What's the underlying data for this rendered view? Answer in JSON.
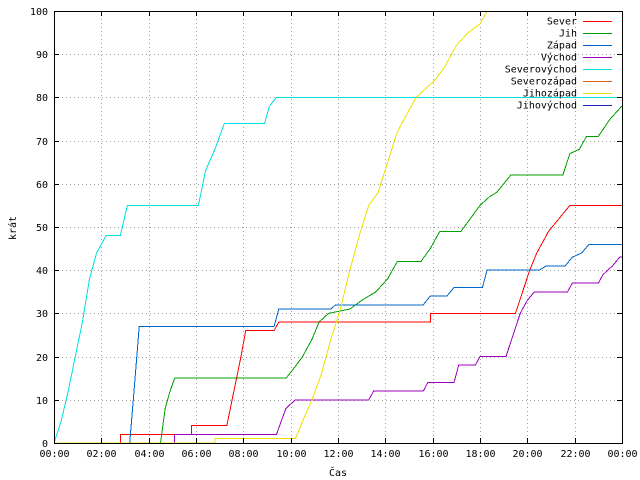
{
  "chart_data": {
    "type": "line",
    "xlabel": "Čas",
    "ylabel": "krát",
    "xlim": [
      0,
      24
    ],
    "ylim": [
      0,
      100
    ],
    "grid": true,
    "legend_position": "top-right",
    "x_ticks": [
      {
        "value": 0,
        "label": "00:00"
      },
      {
        "value": 2,
        "label": "02:00"
      },
      {
        "value": 4,
        "label": "04:00"
      },
      {
        "value": 6,
        "label": "06:00"
      },
      {
        "value": 8,
        "label": "08:00"
      },
      {
        "value": 10,
        "label": "10:00"
      },
      {
        "value": 12,
        "label": "12:00"
      },
      {
        "value": 14,
        "label": "14:00"
      },
      {
        "value": 16,
        "label": "16:00"
      },
      {
        "value": 18,
        "label": "18:00"
      },
      {
        "value": 20,
        "label": "20:00"
      },
      {
        "value": 22,
        "label": "22:00"
      },
      {
        "value": 24,
        "label": "00:00"
      }
    ],
    "y_ticks": [
      0,
      10,
      20,
      30,
      40,
      50,
      60,
      70,
      80,
      90,
      100
    ],
    "series": [
      {
        "name": "Sever",
        "color": "#ff0000",
        "points": [
          [
            0,
            0
          ],
          [
            2.8,
            0
          ],
          [
            2.8,
            2
          ],
          [
            5.8,
            2
          ],
          [
            5.8,
            4
          ],
          [
            7.3,
            4
          ],
          [
            7.6,
            12
          ],
          [
            7.9,
            20
          ],
          [
            8.1,
            26
          ],
          [
            9.3,
            26
          ],
          [
            9.5,
            28
          ],
          [
            15.9,
            28
          ],
          [
            15.9,
            30
          ],
          [
            19.5,
            30
          ],
          [
            19.8,
            35
          ],
          [
            20.1,
            40
          ],
          [
            20.4,
            44
          ],
          [
            20.7,
            47
          ],
          [
            20.9,
            49
          ],
          [
            21.2,
            51
          ],
          [
            21.5,
            53
          ],
          [
            21.8,
            55
          ],
          [
            24,
            55
          ]
        ]
      },
      {
        "name": "Jih",
        "color": "#00a000",
        "points": [
          [
            0,
            0
          ],
          [
            4.5,
            0
          ],
          [
            4.7,
            8
          ],
          [
            4.9,
            12
          ],
          [
            5.1,
            15
          ],
          [
            9.8,
            15
          ],
          [
            10.1,
            17
          ],
          [
            10.5,
            20
          ],
          [
            10.9,
            24
          ],
          [
            11.2,
            28
          ],
          [
            11.6,
            30
          ],
          [
            12.5,
            31
          ],
          [
            13,
            33
          ],
          [
            13.6,
            35
          ],
          [
            14.1,
            38
          ],
          [
            14.5,
            42
          ],
          [
            15.5,
            42
          ],
          [
            15.9,
            45
          ],
          [
            16.3,
            49
          ],
          [
            17.2,
            49
          ],
          [
            17.6,
            52
          ],
          [
            18,
            55
          ],
          [
            18.4,
            57
          ],
          [
            18.7,
            58
          ],
          [
            19.3,
            62
          ],
          [
            21.5,
            62
          ],
          [
            21.8,
            67
          ],
          [
            22.2,
            68
          ],
          [
            22.5,
            71
          ],
          [
            23,
            71
          ],
          [
            23.5,
            75
          ],
          [
            24,
            78
          ]
        ]
      },
      {
        "name": "Západ",
        "color": "#0066cc",
        "points": [
          [
            0,
            0
          ],
          [
            3.2,
            0
          ],
          [
            3.35,
            10
          ],
          [
            3.5,
            20
          ],
          [
            3.6,
            27
          ],
          [
            9.3,
            27
          ],
          [
            9.5,
            31
          ],
          [
            11.7,
            31
          ],
          [
            11.9,
            32
          ],
          [
            15.6,
            32
          ],
          [
            15.9,
            34
          ],
          [
            16.6,
            34
          ],
          [
            16.9,
            36
          ],
          [
            18.1,
            36
          ],
          [
            18.3,
            40
          ],
          [
            20.5,
            40
          ],
          [
            20.8,
            41
          ],
          [
            21.6,
            41
          ],
          [
            21.9,
            43
          ],
          [
            22.3,
            44
          ],
          [
            22.6,
            46
          ],
          [
            24,
            46
          ]
        ]
      },
      {
        "name": "Východ",
        "color": "#a000c0",
        "points": [
          [
            0,
            0
          ],
          [
            5.1,
            0
          ],
          [
            5.1,
            2
          ],
          [
            9.4,
            2
          ],
          [
            9.6,
            5
          ],
          [
            9.8,
            8
          ],
          [
            10.2,
            10
          ],
          [
            13.3,
            10
          ],
          [
            13.5,
            12
          ],
          [
            15.6,
            12
          ],
          [
            15.8,
            14
          ],
          [
            16.9,
            14
          ],
          [
            17.1,
            18
          ],
          [
            17.8,
            18
          ],
          [
            18,
            20
          ],
          [
            19.1,
            20
          ],
          [
            19.4,
            25
          ],
          [
            19.7,
            30
          ],
          [
            20,
            33
          ],
          [
            20.3,
            35
          ],
          [
            21.7,
            35
          ],
          [
            21.9,
            37
          ],
          [
            23,
            37
          ],
          [
            23.2,
            39
          ],
          [
            23.6,
            41
          ],
          [
            23.9,
            43
          ],
          [
            24,
            43
          ]
        ]
      },
      {
        "name": "Severovýchod",
        "color": "#00e0e0",
        "points": [
          [
            0,
            0
          ],
          [
            0.3,
            5
          ],
          [
            0.6,
            12
          ],
          [
            0.9,
            20
          ],
          [
            1.2,
            28
          ],
          [
            1.5,
            38
          ],
          [
            1.8,
            44
          ],
          [
            2.2,
            48
          ],
          [
            2.8,
            48
          ],
          [
            3.1,
            55
          ],
          [
            6.1,
            55
          ],
          [
            6.4,
            63
          ],
          [
            6.8,
            68
          ],
          [
            7.2,
            74
          ],
          [
            8.9,
            74
          ],
          [
            9.1,
            78
          ],
          [
            9.4,
            80
          ],
          [
            24,
            80
          ]
        ]
      },
      {
        "name": "Severozápad",
        "color": "#e06010",
        "points": []
      },
      {
        "name": "Jihozápad",
        "color": "#f0e000",
        "points": [
          [
            0,
            0
          ],
          [
            6.8,
            0
          ],
          [
            6.8,
            1
          ],
          [
            10.2,
            1
          ],
          [
            10.5,
            5
          ],
          [
            10.9,
            10
          ],
          [
            11.3,
            16
          ],
          [
            11.7,
            24
          ],
          [
            12.1,
            31
          ],
          [
            12.5,
            40
          ],
          [
            12.9,
            48
          ],
          [
            13.3,
            55
          ],
          [
            13.7,
            58
          ],
          [
            14.1,
            65
          ],
          [
            14.5,
            72
          ],
          [
            14.9,
            76
          ],
          [
            15.3,
            80
          ],
          [
            15.7,
            82
          ],
          [
            16.1,
            84
          ],
          [
            16.5,
            87
          ],
          [
            17,
            92
          ],
          [
            17.5,
            95
          ],
          [
            18,
            97
          ],
          [
            18.3,
            100
          ]
        ]
      },
      {
        "name": "Jihovýchod",
        "color": "#2020c0",
        "points": []
      }
    ]
  }
}
